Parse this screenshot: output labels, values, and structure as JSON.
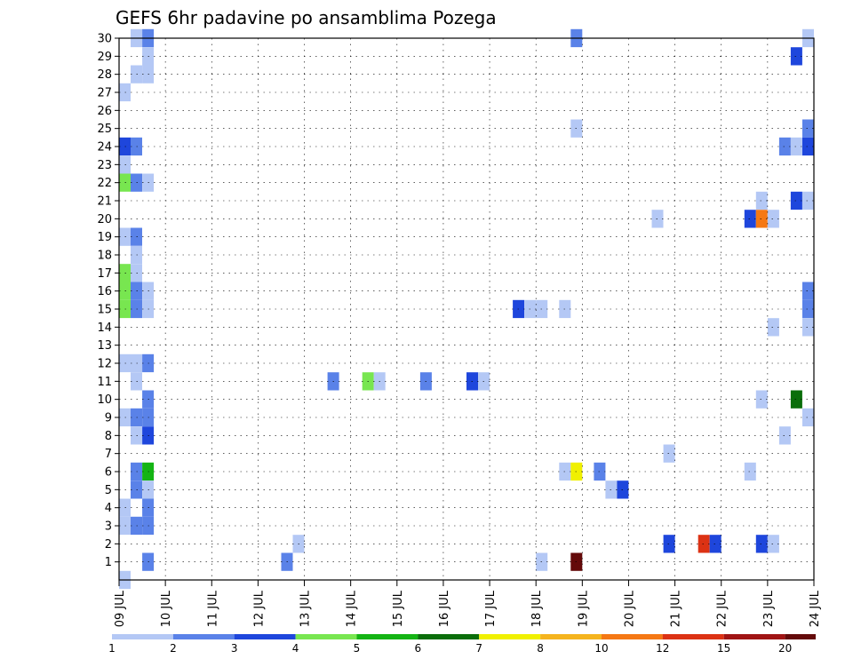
{
  "chart_data": {
    "type": "heatmap",
    "title": "GEFS 6hr padavine po ansamblima Pozega",
    "x_ticks": [
      "09 JUL",
      "10 JUL",
      "11 JUL",
      "12 JUL",
      "13 JUL",
      "14 JUL",
      "15 JUL",
      "16 JUL",
      "17 JUL",
      "18 JUL",
      "19 JUL",
      "20 JUL",
      "21 JUL",
      "22 JUL",
      "23 JUL",
      "24 JUL"
    ],
    "y_ticks": [
      1,
      2,
      3,
      4,
      5,
      6,
      7,
      8,
      9,
      10,
      11,
      12,
      13,
      14,
      15,
      16,
      17,
      18,
      19,
      20,
      21,
      22,
      23,
      24,
      25,
      26,
      27,
      28,
      29,
      30
    ],
    "x_range_days": [
      0,
      15
    ],
    "step_hours": 6,
    "grid": true,
    "legend_position": "bottom",
    "legend": {
      "labels": [
        "1",
        "2",
        "3",
        "4",
        "5",
        "6",
        "7",
        "8",
        "10",
        "12",
        "15",
        "20"
      ],
      "colors": [
        "#b4c8f5",
        "#5a82e8",
        "#1e46dc",
        "#78e650",
        "#14b414",
        "#0a6e0a",
        "#f0f000",
        "#f5b41e",
        "#f57814",
        "#dc3214",
        "#a01414",
        "#640a0a"
      ]
    },
    "colors": [
      "#b4c8f5",
      "#5a82e8",
      "#1e46dc",
      "#78e650",
      "#14b414",
      "#0a6e0a",
      "#f0f000",
      "#f5b41e",
      "#f57814",
      "#dc3214",
      "#a01414",
      "#640a0a"
    ],
    "cells": [
      {
        "step": 0,
        "member": 0,
        "level": 1
      },
      {
        "step": 1,
        "member": 30,
        "level": 1
      },
      {
        "step": 2,
        "member": 30,
        "level": 2
      },
      {
        "step": 2,
        "member": 29,
        "level": 1
      },
      {
        "step": 1,
        "member": 28,
        "level": 1
      },
      {
        "step": 2,
        "member": 28,
        "level": 1
      },
      {
        "step": 0,
        "member": 27,
        "level": 1
      },
      {
        "step": 0,
        "member": 24,
        "level": 3
      },
      {
        "step": 1,
        "member": 24,
        "level": 2
      },
      {
        "step": 0,
        "member": 23,
        "level": 1
      },
      {
        "step": 0,
        "member": 22,
        "level": 4
      },
      {
        "step": 1,
        "member": 22,
        "level": 2
      },
      {
        "step": 2,
        "member": 22,
        "level": 1
      },
      {
        "step": 0,
        "member": 19,
        "level": 1
      },
      {
        "step": 1,
        "member": 19,
        "level": 2
      },
      {
        "step": 1,
        "member": 18,
        "level": 1
      },
      {
        "step": 0,
        "member": 17,
        "level": 4
      },
      {
        "step": 1,
        "member": 17,
        "level": 1
      },
      {
        "step": 0,
        "member": 16,
        "level": 4
      },
      {
        "step": 1,
        "member": 16,
        "level": 2
      },
      {
        "step": 2,
        "member": 16,
        "level": 1
      },
      {
        "step": 0,
        "member": 15,
        "level": 4
      },
      {
        "step": 1,
        "member": 15,
        "level": 2
      },
      {
        "step": 2,
        "member": 15,
        "level": 1
      },
      {
        "step": 0,
        "member": 12,
        "level": 1
      },
      {
        "step": 1,
        "member": 12,
        "level": 1
      },
      {
        "step": 2,
        "member": 12,
        "level": 2
      },
      {
        "step": 1,
        "member": 11,
        "level": 1
      },
      {
        "step": 2,
        "member": 10,
        "level": 2
      },
      {
        "step": 0,
        "member": 9,
        "level": 1
      },
      {
        "step": 1,
        "member": 9,
        "level": 2
      },
      {
        "step": 2,
        "member": 9,
        "level": 2
      },
      {
        "step": 1,
        "member": 8,
        "level": 1
      },
      {
        "step": 2,
        "member": 8,
        "level": 3
      },
      {
        "step": 1,
        "member": 6,
        "level": 2
      },
      {
        "step": 2,
        "member": 6,
        "level": 5
      },
      {
        "step": 1,
        "member": 5,
        "level": 2
      },
      {
        "step": 2,
        "member": 5,
        "level": 1
      },
      {
        "step": 0,
        "member": 4,
        "level": 1
      },
      {
        "step": 2,
        "member": 4,
        "level": 2
      },
      {
        "step": 0,
        "member": 3,
        "level": 1
      },
      {
        "step": 1,
        "member": 3,
        "level": 2
      },
      {
        "step": 2,
        "member": 3,
        "level": 2
      },
      {
        "step": 2,
        "member": 1,
        "level": 2
      },
      {
        "step": 15,
        "member": 2,
        "level": 1
      },
      {
        "step": 14,
        "member": 1,
        "level": 2
      },
      {
        "step": 18,
        "member": 11,
        "level": 2
      },
      {
        "step": 21,
        "member": 11,
        "level": 4
      },
      {
        "step": 22,
        "member": 11,
        "level": 1
      },
      {
        "step": 26,
        "member": 11,
        "level": 2
      },
      {
        "step": 30,
        "member": 11,
        "level": 3
      },
      {
        "step": 31,
        "member": 11,
        "level": 1
      },
      {
        "step": 34,
        "member": 15,
        "level": 3
      },
      {
        "step": 35,
        "member": 15,
        "level": 1
      },
      {
        "step": 36,
        "member": 15,
        "level": 1
      },
      {
        "step": 38,
        "member": 15,
        "level": 1
      },
      {
        "step": 36,
        "member": 1,
        "level": 1
      },
      {
        "step": 38,
        "member": 6,
        "level": 1
      },
      {
        "step": 39,
        "member": 6,
        "level": 7
      },
      {
        "step": 41,
        "member": 6,
        "level": 2
      },
      {
        "step": 42,
        "member": 5,
        "level": 1
      },
      {
        "step": 43,
        "member": 5,
        "level": 3
      },
      {
        "step": 39,
        "member": 30,
        "level": 2
      },
      {
        "step": 39,
        "member": 25,
        "level": 1
      },
      {
        "step": 39,
        "member": 1,
        "level": 12
      },
      {
        "step": 46,
        "member": 20,
        "level": 1
      },
      {
        "step": 47,
        "member": 7,
        "level": 1
      },
      {
        "step": 47,
        "member": 2,
        "level": 3
      },
      {
        "step": 50,
        "member": 2,
        "level": 10
      },
      {
        "step": 51,
        "member": 2,
        "level": 3
      },
      {
        "step": 54,
        "member": 20,
        "level": 3
      },
      {
        "step": 55,
        "member": 20,
        "level": 9
      },
      {
        "step": 56,
        "member": 20,
        "level": 1
      },
      {
        "step": 55,
        "member": 21,
        "level": 1
      },
      {
        "step": 55,
        "member": 10,
        "level": 1
      },
      {
        "step": 54,
        "member": 6,
        "level": 1
      },
      {
        "step": 55,
        "member": 2,
        "level": 3
      },
      {
        "step": 56,
        "member": 2,
        "level": 1
      },
      {
        "step": 56,
        "member": 14,
        "level": 1
      },
      {
        "step": 57,
        "member": 8,
        "level": 1
      },
      {
        "step": 57,
        "member": 24,
        "level": 2
      },
      {
        "step": 58,
        "member": 24,
        "level": 1
      },
      {
        "step": 58,
        "member": 29,
        "level": 3
      },
      {
        "step": 58,
        "member": 21,
        "level": 3
      },
      {
        "step": 58,
        "member": 10,
        "level": 6
      },
      {
        "step": 59,
        "member": 30,
        "level": 1
      },
      {
        "step": 59,
        "member": 25,
        "level": 2
      },
      {
        "step": 59,
        "member": 24,
        "level": 3
      },
      {
        "step": 59,
        "member": 21,
        "level": 1
      },
      {
        "step": 59,
        "member": 16,
        "level": 2
      },
      {
        "step": 59,
        "member": 15,
        "level": 2
      },
      {
        "step": 59,
        "member": 14,
        "level": 1
      },
      {
        "step": 59,
        "member": 9,
        "level": 1
      }
    ]
  }
}
